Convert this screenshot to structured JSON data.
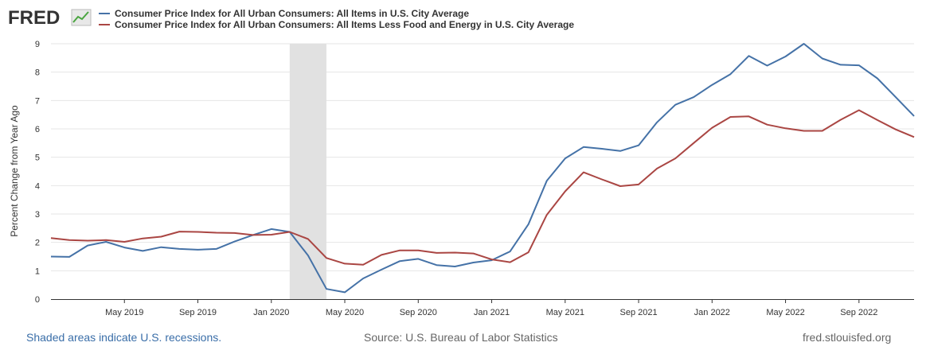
{
  "logo": {
    "text": "FRED",
    "icon": "line-chart-icon"
  },
  "legend": [
    {
      "label": "Consumer Price Index for All Urban Consumers: All Items in U.S. City Average",
      "color": "#4572a7"
    },
    {
      "label": "Consumer Price Index for All Urban Consumers: All Items Less Food and Energy in U.S. City Average",
      "color": "#aa4643"
    }
  ],
  "footer": {
    "recession_note": "Shaded areas indicate U.S. recessions.",
    "source": "Source: U.S. Bureau of Labor Statistics",
    "site": "fred.stlouisfed.org"
  },
  "chart_data": {
    "type": "line",
    "ylabel": "Percent Change from Year Ago",
    "xlabel": "",
    "ylim": [
      0,
      9
    ],
    "yticks": [
      0,
      1,
      2,
      3,
      4,
      5,
      6,
      7,
      8,
      9
    ],
    "xlim": [
      "2019-01",
      "2022-12"
    ],
    "xticks": [
      {
        "date": "2019-05",
        "label": "May 2019"
      },
      {
        "date": "2019-09",
        "label": "Sep 2019"
      },
      {
        "date": "2020-01",
        "label": "Jan 2020"
      },
      {
        "date": "2020-05",
        "label": "May 2020"
      },
      {
        "date": "2020-09",
        "label": "Sep 2020"
      },
      {
        "date": "2021-01",
        "label": "Jan 2021"
      },
      {
        "date": "2021-05",
        "label": "May 2021"
      },
      {
        "date": "2021-09",
        "label": "Sep 2021"
      },
      {
        "date": "2022-01",
        "label": "Jan 2022"
      },
      {
        "date": "2022-05",
        "label": "May 2022"
      },
      {
        "date": "2022-09",
        "label": "Sep 2022"
      }
    ],
    "grid": "horizontal",
    "recession": {
      "start": "2020-02",
      "end": "2020-04",
      "color": "#e1e1e1"
    },
    "x": [
      "2019-01",
      "2019-02",
      "2019-03",
      "2019-04",
      "2019-05",
      "2019-06",
      "2019-07",
      "2019-08",
      "2019-09",
      "2019-10",
      "2019-11",
      "2019-12",
      "2020-01",
      "2020-02",
      "2020-03",
      "2020-04",
      "2020-05",
      "2020-06",
      "2020-07",
      "2020-08",
      "2020-09",
      "2020-10",
      "2020-11",
      "2020-12",
      "2021-01",
      "2021-02",
      "2021-03",
      "2021-04",
      "2021-05",
      "2021-06",
      "2021-07",
      "2021-08",
      "2021-09",
      "2021-10",
      "2021-11",
      "2021-12",
      "2022-01",
      "2022-02",
      "2022-03",
      "2022-04",
      "2022-05",
      "2022-06",
      "2022-07",
      "2022-08",
      "2022-09",
      "2022-10",
      "2022-11",
      "2022-12"
    ],
    "series": [
      {
        "name": "Consumer Price Index for All Urban Consumers: All Items in U.S. City Average",
        "color": "#4572a7",
        "values": [
          1.5,
          1.49,
          1.89,
          2.02,
          1.82,
          1.7,
          1.83,
          1.77,
          1.74,
          1.77,
          2.03,
          2.26,
          2.47,
          2.37,
          1.54,
          0.36,
          0.24,
          0.73,
          1.04,
          1.34,
          1.42,
          1.2,
          1.15,
          1.29,
          1.37,
          1.68,
          2.64,
          4.17,
          4.96,
          5.36,
          5.3,
          5.22,
          5.42,
          6.23,
          6.85,
          7.12,
          7.55,
          7.93,
          8.57,
          8.23,
          8.55,
          9.0,
          8.48,
          8.26,
          8.24,
          7.78,
          7.12,
          6.45
        ]
      },
      {
        "name": "Consumer Price Index for All Urban Consumers: All Items Less Food and Energy in U.S. City Average",
        "color": "#aa4643",
        "values": [
          2.15,
          2.08,
          2.06,
          2.08,
          2.02,
          2.14,
          2.2,
          2.38,
          2.37,
          2.34,
          2.33,
          2.26,
          2.27,
          2.37,
          2.12,
          1.45,
          1.25,
          1.21,
          1.56,
          1.72,
          1.72,
          1.63,
          1.64,
          1.61,
          1.4,
          1.3,
          1.65,
          2.97,
          3.8,
          4.47,
          4.22,
          3.98,
          4.04,
          4.6,
          4.96,
          5.5,
          6.04,
          6.42,
          6.44,
          6.15,
          6.02,
          5.93,
          5.93,
          6.32,
          6.66,
          6.31,
          5.98,
          5.71
        ]
      }
    ]
  }
}
